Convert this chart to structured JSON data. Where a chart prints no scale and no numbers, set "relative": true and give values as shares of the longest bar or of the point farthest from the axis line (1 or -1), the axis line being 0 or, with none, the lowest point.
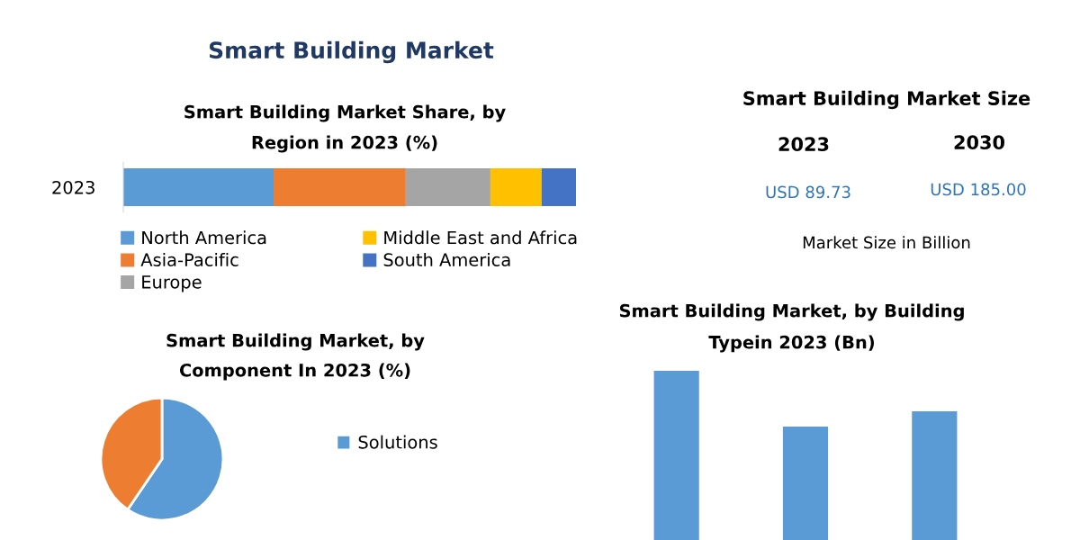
{
  "chart_data": [
    {
      "type": "other",
      "title": "Smart Building Market"
    },
    {
      "type": "bar",
      "title": "Smart Building Market Share, by Region in 2023 (%)",
      "orientation": "horizontal",
      "stacked": true,
      "relative": true,
      "legend": "bottom",
      "categories": [
        "2023"
      ],
      "series": [
        {
          "name": "North America",
          "color": "#5b9bd5",
          "values": [
            0.332
          ]
        },
        {
          "name": "Asia-Pacific",
          "color": "#ed7d31",
          "values": [
            0.292
          ]
        },
        {
          "name": "Europe",
          "color": "#a5a5a5",
          "values": [
            0.187
          ]
        },
        {
          "name": "Middle East and Africa",
          "color": "#ffc000",
          "values": [
            0.113
          ]
        },
        {
          "name": "South America",
          "color": "#4472c4",
          "values": [
            0.076
          ]
        }
      ]
    },
    {
      "type": "other",
      "title": "Smart Building Market Size",
      "annotations": [
        "2023",
        "2030",
        "USD 89.73",
        "USD 185.00",
        "Market Size in Billion"
      ]
    },
    {
      "type": "pie",
      "title": "Smart Building Market, by Component In 2023 (%)",
      "legend": "right",
      "categories": [
        "Solutions",
        null
      ],
      "values": [
        59.5,
        40.5
      ],
      "colors": [
        "#5b9bd5",
        "#ed7d31"
      ]
    },
    {
      "type": "bar",
      "title": "Smart Building Market, by Building Typein 2023 (Bn)",
      "relative": true,
      "categories": [
        null,
        null,
        null
      ],
      "values": [
        1,
        0.67,
        0.76
      ],
      "color": "#5b9bd5"
    }
  ]
}
